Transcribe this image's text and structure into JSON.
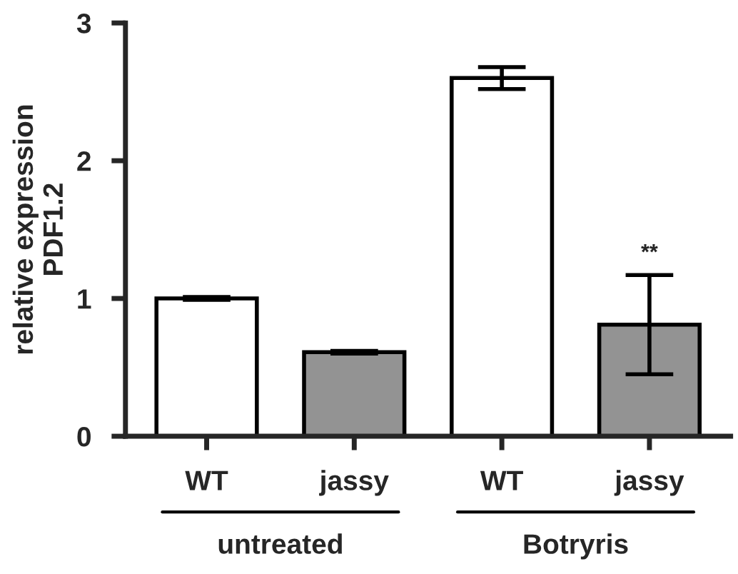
{
  "chart_data": {
    "type": "bar",
    "ylabel": "relative expression\nPDF1.2",
    "categories": [
      "WT",
      "jassy",
      "WT",
      "jassy"
    ],
    "values": [
      1.0,
      0.61,
      2.6,
      0.81
    ],
    "colors": [
      "#ffffff",
      "#939393",
      "#ffffff",
      "#939393"
    ],
    "errors": [
      0.01,
      0.01,
      0.08,
      [
        0.45,
        1.17
      ]
    ],
    "ylim": [
      0,
      3
    ],
    "yticks": [
      0,
      1,
      2,
      3
    ],
    "annotations": [
      "**",
      "untreated",
      "Botryris"
    ]
  }
}
